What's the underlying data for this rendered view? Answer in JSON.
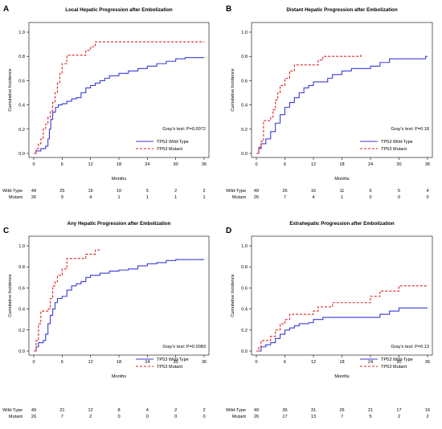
{
  "chart_data": [
    {
      "panel": "A",
      "type": "line",
      "title": "Local Hepatic Progression after Embolization",
      "xlabel": "Months",
      "ylabel": "Cumulative Incidence",
      "xticks": [
        0,
        6,
        12,
        18,
        24,
        30,
        36
      ],
      "yticks": [
        "0.0",
        "0.2",
        "0.4",
        "0.6",
        "0.8",
        "1.0"
      ],
      "xlim": [
        0,
        36
      ],
      "ylim": [
        0,
        1.0
      ],
      "annotation": "Gray's test: P=0.0072",
      "legend": [
        "TP53 Wild-Type",
        "TP53 Mutant"
      ],
      "legend_position": "bottom-right",
      "series": [
        {
          "name": "TP53 Wild-Type",
          "color": "#3b3bd6",
          "dash": "solid",
          "steps": [
            [
              0,
              0
            ],
            [
              0.5,
              0.02
            ],
            [
              1.5,
              0.04
            ],
            [
              2.5,
              0.06
            ],
            [
              3,
              0.12
            ],
            [
              3.3,
              0.2
            ],
            [
              3.6,
              0.28
            ],
            [
              4,
              0.34
            ],
            [
              4.6,
              0.38
            ],
            [
              5.2,
              0.4
            ],
            [
              6,
              0.41
            ],
            [
              7,
              0.43
            ],
            [
              8,
              0.45
            ],
            [
              9,
              0.46
            ],
            [
              10,
              0.5
            ],
            [
              11,
              0.54
            ],
            [
              12,
              0.56
            ],
            [
              13,
              0.58
            ],
            [
              14,
              0.6
            ],
            [
              15,
              0.62
            ],
            [
              16,
              0.64
            ],
            [
              18,
              0.66
            ],
            [
              20,
              0.68
            ],
            [
              22,
              0.7
            ],
            [
              24,
              0.72
            ],
            [
              26,
              0.74
            ],
            [
              28,
              0.76
            ],
            [
              30,
              0.78
            ],
            [
              32,
              0.79
            ],
            [
              36,
              0.79
            ]
          ]
        },
        {
          "name": "TP53 Mutant",
          "color": "#e02020",
          "dash": "dashed",
          "steps": [
            [
              0,
              0
            ],
            [
              0.5,
              0.04
            ],
            [
              1,
              0.08
            ],
            [
              1.5,
              0.12
            ],
            [
              2,
              0.2
            ],
            [
              2.5,
              0.24
            ],
            [
              3,
              0.3
            ],
            [
              3.5,
              0.35
            ],
            [
              4,
              0.42
            ],
            [
              4.5,
              0.5
            ],
            [
              5,
              0.58
            ],
            [
              5.5,
              0.66
            ],
            [
              6,
              0.74
            ],
            [
              7,
              0.81
            ],
            [
              10,
              0.81
            ],
            [
              11,
              0.85
            ],
            [
              12,
              0.88
            ],
            [
              13,
              0.92
            ],
            [
              36,
              0.92
            ]
          ]
        }
      ],
      "risk_table": {
        "times": [
          0,
          6,
          12,
          18,
          24,
          30,
          36
        ],
        "rows": [
          {
            "label": "Wild-Type",
            "values": [
              "49",
              "25",
              "16",
              "10",
              "5",
              "2",
              "2"
            ]
          },
          {
            "label": "Mutant",
            "values": [
              "26",
              "9",
              "4",
              "1",
              "1",
              "1",
              "1"
            ]
          }
        ]
      }
    },
    {
      "panel": "B",
      "type": "line",
      "title": "Distant Hepatic Progression after Embolization",
      "xlabel": "Months",
      "ylabel": "Cumulative Incidence",
      "xticks": [
        0,
        6,
        12,
        18,
        24,
        30,
        36
      ],
      "yticks": [
        "0.0",
        "0.2",
        "0.4",
        "0.6",
        "0.8",
        "1.0"
      ],
      "xlim": [
        0,
        36
      ],
      "ylim": [
        0,
        1.0
      ],
      "annotation": "Gray's test: P=0.18",
      "legend": [
        "TP53 Wild-Type",
        "TP53 Mutant"
      ],
      "legend_position": "bottom-right",
      "series": [
        {
          "name": "TP53 Wild-Type",
          "color": "#3b3bd6",
          "dash": "solid",
          "steps": [
            [
              0,
              0
            ],
            [
              0.5,
              0.04
            ],
            [
              1,
              0.08
            ],
            [
              2,
              0.12
            ],
            [
              3,
              0.18
            ],
            [
              4,
              0.25
            ],
            [
              5,
              0.32
            ],
            [
              6,
              0.38
            ],
            [
              7,
              0.42
            ],
            [
              8,
              0.46
            ],
            [
              9,
              0.5
            ],
            [
              10,
              0.54
            ],
            [
              11,
              0.56
            ],
            [
              12,
              0.59
            ],
            [
              15,
              0.62
            ],
            [
              16,
              0.65
            ],
            [
              18,
              0.68
            ],
            [
              20,
              0.7
            ],
            [
              24,
              0.72
            ],
            [
              26,
              0.75
            ],
            [
              28,
              0.78
            ],
            [
              35,
              0.78
            ],
            [
              35.6,
              0.8
            ],
            [
              36,
              0.8
            ]
          ]
        },
        {
          "name": "TP53 Mutant",
          "color": "#e02020",
          "dash": "dashed",
          "steps": [
            [
              0,
              0
            ],
            [
              0.5,
              0.05
            ],
            [
              1,
              0.1
            ],
            [
              1.5,
              0.27
            ],
            [
              3,
              0.3
            ],
            [
              3.5,
              0.36
            ],
            [
              4,
              0.44
            ],
            [
              4.5,
              0.5
            ],
            [
              5,
              0.56
            ],
            [
              6,
              0.62
            ],
            [
              7,
              0.68
            ],
            [
              8,
              0.73
            ],
            [
              12,
              0.73
            ],
            [
              13,
              0.77
            ],
            [
              14,
              0.8
            ],
            [
              22,
              0.8
            ],
            [
              22,
              0.82
            ]
          ]
        }
      ],
      "risk_table": {
        "times": [
          0,
          6,
          12,
          18,
          24,
          30,
          36
        ],
        "rows": [
          {
            "label": "Wild-Type",
            "values": [
              "49",
              "26",
              "16",
              "11",
              "6",
              "5",
              "4"
            ]
          },
          {
            "label": "Mutant",
            "values": [
              "26",
              "7",
              "4",
              "1",
              "0",
              "0",
              "0"
            ]
          }
        ]
      }
    },
    {
      "panel": "C",
      "type": "line",
      "title": "Any Hepatic Progression after Embolization",
      "xlabel": "Months",
      "ylabel": "Cumulative Incidence",
      "xticks": [
        0,
        6,
        12,
        18,
        24,
        30,
        36
      ],
      "yticks": [
        "0.0",
        "0.2",
        "0.4",
        "0.6",
        "0.8",
        "1.0"
      ],
      "xlim": [
        0,
        36
      ],
      "ylim": [
        0,
        1.0
      ],
      "annotation": "Gray's test: P=0.0083",
      "legend": [
        "TP53 Wild-Type",
        "TP53 Mutant"
      ],
      "legend_position": "bottom-right",
      "series": [
        {
          "name": "TP53 Wild-Type",
          "color": "#3b3bd6",
          "dash": "solid",
          "steps": [
            [
              0,
              0
            ],
            [
              0.5,
              0.04
            ],
            [
              1,
              0.08
            ],
            [
              2,
              0.1
            ],
            [
              2.5,
              0.16
            ],
            [
              3,
              0.26
            ],
            [
              3.5,
              0.34
            ],
            [
              4,
              0.4
            ],
            [
              4.5,
              0.46
            ],
            [
              5,
              0.5
            ],
            [
              6,
              0.52
            ],
            [
              7,
              0.58
            ],
            [
              8,
              0.62
            ],
            [
              9,
              0.64
            ],
            [
              10,
              0.66
            ],
            [
              11,
              0.7
            ],
            [
              12,
              0.72
            ],
            [
              14,
              0.74
            ],
            [
              16,
              0.76
            ],
            [
              18,
              0.77
            ],
            [
              20,
              0.78
            ],
            [
              22,
              0.81
            ],
            [
              24,
              0.83
            ],
            [
              26,
              0.84
            ],
            [
              28,
              0.86
            ],
            [
              30,
              0.87
            ],
            [
              36,
              0.87
            ]
          ]
        },
        {
          "name": "TP53 Mutant",
          "color": "#e02020",
          "dash": "dashed",
          "steps": [
            [
              0,
              0
            ],
            [
              0.5,
              0.1
            ],
            [
              1,
              0.26
            ],
            [
              1.5,
              0.38
            ],
            [
              3,
              0.4
            ],
            [
              3.5,
              0.5
            ],
            [
              4,
              0.62
            ],
            [
              4.5,
              0.66
            ],
            [
              5,
              0.72
            ],
            [
              6,
              0.78
            ],
            [
              7,
              0.88
            ],
            [
              10,
              0.88
            ],
            [
              11,
              0.92
            ],
            [
              13,
              0.96
            ],
            [
              14,
              0.96
            ]
          ]
        }
      ],
      "risk_table": {
        "times": [
          0,
          6,
          12,
          18,
          24,
          30,
          36
        ],
        "rows": [
          {
            "label": "Wild-Type",
            "values": [
              "49",
              "21",
              "12",
              "8",
              "4",
              "2",
              "2"
            ]
          },
          {
            "label": "Mutant",
            "values": [
              "26",
              "7",
              "2",
              "0",
              "0",
              "0",
              "0"
            ]
          }
        ]
      }
    },
    {
      "panel": "D",
      "type": "line",
      "title": "Extrahepatic Progression after Embolization",
      "xlabel": "Months",
      "ylabel": "Cumulative Incidence",
      "xticks": [
        0,
        6,
        12,
        18,
        24,
        30,
        36
      ],
      "yticks": [
        "0.0",
        "0.2",
        "0.4",
        "0.6",
        "0.8",
        "1.0"
      ],
      "xlim": [
        0,
        36
      ],
      "ylim": [
        0,
        1.0
      ],
      "annotation": "Gray's test: P=0.13",
      "legend": [
        "TP53 Wild-Type",
        "TP53 Mutant"
      ],
      "legend_position": "bottom-right",
      "series": [
        {
          "name": "TP53 Wild-Type",
          "color": "#3b3bd6",
          "dash": "solid",
          "steps": [
            [
              0,
              0
            ],
            [
              1,
              0.04
            ],
            [
              2,
              0.06
            ],
            [
              3,
              0.08
            ],
            [
              4,
              0.12
            ],
            [
              5,
              0.16
            ],
            [
              6,
              0.2
            ],
            [
              7,
              0.22
            ],
            [
              8,
              0.24
            ],
            [
              9,
              0.26
            ],
            [
              11,
              0.27
            ],
            [
              12,
              0.3
            ],
            [
              14,
              0.32
            ],
            [
              24,
              0.32
            ],
            [
              26,
              0.35
            ],
            [
              28,
              0.38
            ],
            [
              30,
              0.41
            ],
            [
              36,
              0.41
            ]
          ]
        },
        {
          "name": "TP53 Mutant",
          "color": "#e02020",
          "dash": "dashed",
          "steps": [
            [
              0,
              0
            ],
            [
              0.5,
              0.04
            ],
            [
              1,
              0.1
            ],
            [
              3,
              0.14
            ],
            [
              4,
              0.2
            ],
            [
              5,
              0.26
            ],
            [
              6,
              0.3
            ],
            [
              7,
              0.35
            ],
            [
              12,
              0.38
            ],
            [
              13,
              0.42
            ],
            [
              16,
              0.46
            ],
            [
              24,
              0.52
            ],
            [
              26,
              0.57
            ],
            [
              30,
              0.62
            ],
            [
              36,
              0.62
            ]
          ]
        }
      ],
      "risk_table": {
        "times": [
          0,
          6,
          12,
          18,
          24,
          30,
          36
        ],
        "rows": [
          {
            "label": "Wild-Type",
            "values": [
              "49",
              "36",
              "31",
              "26",
              "21",
              "17",
              "16"
            ]
          },
          {
            "label": "Mutant",
            "values": [
              "26",
              "17",
              "13",
              "7",
              "5",
              "2",
              "2"
            ]
          }
        ]
      }
    }
  ]
}
